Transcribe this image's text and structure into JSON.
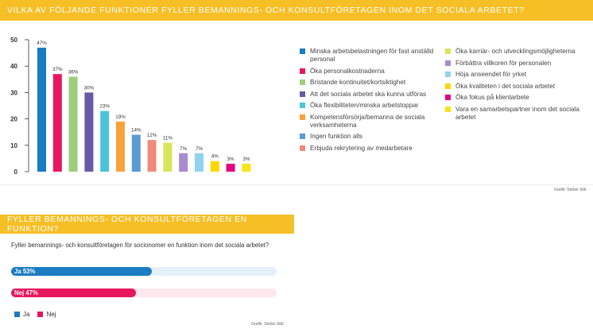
{
  "section1": {
    "title": "VILKA AV FÖLJANDE FUNKTIONER FYLLER BEMANNINGS- OCH KONSULTFÖRETAGEN INOM DET SOCIALA ARBETET?",
    "credit": "Grafik: Stefan Stål"
  },
  "chart_data": [
    {
      "type": "bar",
      "title": "Vilka av följande funktioner fyller bemannings- och konsultföretagen inom det sociala arbetet?",
      "ylim": [
        0,
        50
      ],
      "yticks": [
        "0",
        "10",
        "20",
        "30",
        "40",
        "50"
      ],
      "xlabel": "",
      "ylabel": "",
      "categories": [
        "Minska arbetsbelastningen för fast anställd personal",
        "Öka personalkostnaderna",
        "Bristande kontinuitet/kortsiktighet",
        "Att det sociala arbetet ska kunna utföras",
        "Öka flexibiliteten/minska arbetstoppar",
        "Kompetensförsörja/bemanna de sociala verksamheterna",
        "Ingen funktion alls",
        "Erbjuda rekrytering av medarbetare",
        "Öka karriär- och utvecklingsmöjligheterna",
        "Förbättra villkoren för personalen",
        "Höja anseendet för yrket",
        "Öka kvaliteten i det sociala arbetet",
        "Öka fokus på klientarbete",
        "Vara en samarbetspartner inom det sociala arbetet"
      ],
      "values": [
        47,
        37,
        36,
        30,
        23,
        19,
        14,
        12,
        11,
        7,
        7,
        4,
        3,
        3
      ],
      "labels": [
        "47%",
        "37%",
        "36%",
        "30%",
        "23%",
        "19%",
        "14%",
        "12%",
        "11%",
        "7%",
        "7%",
        "4%",
        "3%",
        "3%"
      ],
      "colors": [
        "#1a7cc1",
        "#e8175d",
        "#9dcf7a",
        "#6a5aa5",
        "#4ec3d8",
        "#f7a33a",
        "#5b9bd5",
        "#f08a7a",
        "#d9e55a",
        "#a98bd1",
        "#8fd3f0",
        "#ffd700",
        "#e4007f",
        "#f9e31c"
      ]
    },
    {
      "type": "bar",
      "orientation": "horizontal",
      "title": "Fyller bemannings- och konsultföretagen för socionomer en funktion inom det sociala arbetet?",
      "categories": [
        "Ja",
        "Nej"
      ],
      "values": [
        53,
        47
      ],
      "labels": [
        "Ja 53%",
        "Nej 47%"
      ],
      "colors": [
        "#1a7cc1",
        "#e8175d"
      ],
      "track_colors": [
        "#e6f0fa",
        "#fde8ee"
      ],
      "xlim": [
        0,
        100
      ]
    }
  ],
  "section2": {
    "title": "FYLLER BEMANNINGS- OCH KONSULTFÖRETAGEN EN FUNKTION?",
    "question": "Fyller bemannings- och konsultföretagen för socionomer en funktion inom det sociala arbetet?",
    "legend": [
      "Ja",
      "Nej"
    ],
    "credit": "Grafik: Stefan Stål"
  }
}
